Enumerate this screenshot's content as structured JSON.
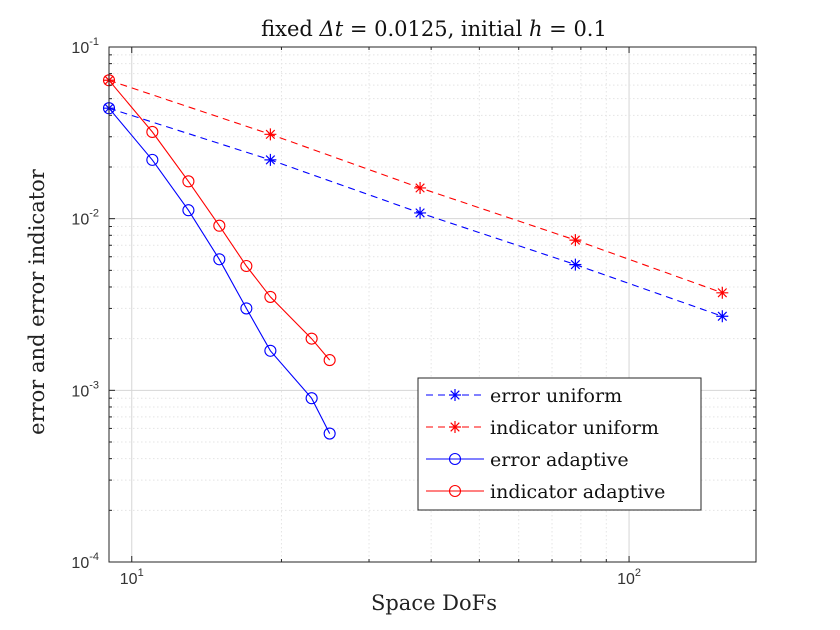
{
  "chart_data": {
    "type": "line",
    "title": "fixed Δt = 0.0125, initial h = 0.1",
    "title_parts": {
      "prefix": "fixed ",
      "var1": "Δt",
      "eq1": " = 0.0125, initial ",
      "var2": "h",
      "eq2": " = 0.1"
    },
    "xlabel": "Space DoFs",
    "ylabel": "error and error indicator",
    "xscale": "log",
    "yscale": "log",
    "xlim": [
      9,
      180
    ],
    "ylim": [
      0.0001,
      0.1
    ],
    "grid": true,
    "minor_grid": true,
    "xticks": [
      {
        "value": 10,
        "base": "10",
        "exp": "1"
      },
      {
        "value": 100,
        "base": "10",
        "exp": "2"
      }
    ],
    "yticks": [
      {
        "value": 0.0001,
        "base": "10",
        "exp": "-4"
      },
      {
        "value": 0.001,
        "base": "10",
        "exp": "-3"
      },
      {
        "value": 0.01,
        "base": "10",
        "exp": "-2"
      },
      {
        "value": 0.1,
        "base": "10",
        "exp": "-1"
      }
    ],
    "legend_position": "bottom-center",
    "series": [
      {
        "name": "error uniform",
        "color": "#0000ff",
        "linestyle": "dashed",
        "marker": "star",
        "x": [
          9,
          19,
          38,
          78,
          154
        ],
        "y": [
          0.044,
          0.022,
          0.0108,
          0.0054,
          0.0027
        ]
      },
      {
        "name": "indicator uniform",
        "color": "#ff0000",
        "linestyle": "dashed",
        "marker": "star",
        "x": [
          9,
          19,
          38,
          78,
          154
        ],
        "y": [
          0.064,
          0.031,
          0.0151,
          0.0075,
          0.0037
        ]
      },
      {
        "name": "error adaptive",
        "color": "#0000ff",
        "linestyle": "solid",
        "marker": "circle",
        "x": [
          9,
          11,
          13,
          15,
          17,
          19,
          23,
          25
        ],
        "y": [
          0.044,
          0.022,
          0.0112,
          0.0058,
          0.003,
          0.0017,
          0.0009,
          0.00056
        ]
      },
      {
        "name": "indicator adaptive",
        "color": "#ff0000",
        "linestyle": "solid",
        "marker": "circle",
        "x": [
          9,
          11,
          13,
          15,
          17,
          19,
          23,
          25
        ],
        "y": [
          0.064,
          0.032,
          0.0165,
          0.0091,
          0.0053,
          0.0035,
          0.002,
          0.0015
        ]
      }
    ]
  }
}
